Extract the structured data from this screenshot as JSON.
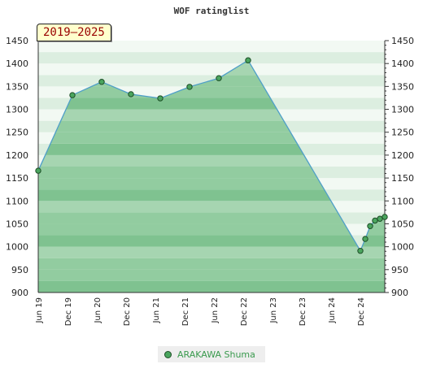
{
  "chart_data": {
    "type": "area",
    "title": "WOF ratinglist",
    "period_label": "2019–2025",
    "x_ticks": [
      "Jun 19",
      "Dec 19",
      "Jun 20",
      "Dec 20",
      "Jun 21",
      "Dec 21",
      "Jun 22",
      "Dec 22",
      "Jun 23",
      "Dec 23",
      "Jun 24",
      "Dec 24"
    ],
    "y_ticks": [
      "1450",
      "1400",
      "1350",
      "1300",
      "1250",
      "1200",
      "1150",
      "1100",
      "1050",
      "1000",
      "950",
      "900"
    ],
    "ylim": [
      900,
      1450
    ],
    "xlim": [
      "2019-06",
      "2025-05"
    ],
    "grid": "horizontal bands",
    "legend_position": "bottom-center",
    "series": [
      {
        "name": "ARAKAWA Shuma",
        "color": "#4aa55e",
        "points": [
          {
            "x": "2019-06",
            "y": 1166
          },
          {
            "x": "2020-01",
            "y": 1331
          },
          {
            "x": "2020-07",
            "y": 1360
          },
          {
            "x": "2021-01",
            "y": 1333
          },
          {
            "x": "2021-07",
            "y": 1324
          },
          {
            "x": "2022-01",
            "y": 1349
          },
          {
            "x": "2022-07",
            "y": 1368
          },
          {
            "x": "2023-01",
            "y": 1407
          },
          {
            "x": "2024-12",
            "y": 991
          },
          {
            "x": "2025-01",
            "y": 1017
          },
          {
            "x": "2025-02",
            "y": 1045
          },
          {
            "x": "2025-03",
            "y": 1057
          },
          {
            "x": "2025-04",
            "y": 1061
          },
          {
            "x": "2025-05",
            "y": 1065
          }
        ]
      }
    ]
  }
}
